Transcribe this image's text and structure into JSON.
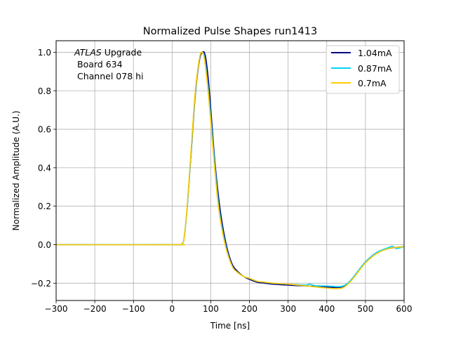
{
  "chart_data": {
    "type": "line",
    "title": "Normalized Pulse Shapes run1413",
    "xlabel": "Time [ns]",
    "ylabel": "Normalized Amplitude (A.U.)",
    "xlim": [
      -300,
      600
    ],
    "ylim": [
      -0.29,
      1.06
    ],
    "xticks": [
      -300,
      -200,
      -100,
      0,
      100,
      200,
      300,
      400,
      500,
      600
    ],
    "xtick_labels": [
      "−300",
      "−200",
      "−100",
      "0",
      "100",
      "200",
      "300",
      "400",
      "500",
      "600"
    ],
    "yticks": [
      -0.2,
      0.0,
      0.2,
      0.4,
      0.6,
      0.8,
      1.0
    ],
    "ytick_labels": [
      "−0.2",
      "0.0",
      "0.2",
      "0.4",
      "0.6",
      "0.8",
      "1.0"
    ],
    "grid": true,
    "legend_position": "top-right",
    "annotation": {
      "atlas": "ATLAS",
      "upgrade": " Upgrade",
      "board": "Board 634",
      "channel": "Channel 078 hi"
    },
    "series": [
      {
        "name": "1.04mA",
        "color": "#00007f",
        "x": [
          -300,
          0,
          25,
          32,
          40,
          50,
          60,
          70,
          78,
          86,
          94,
          102,
          112,
          125,
          140,
          155,
          170,
          185,
          200,
          220,
          240,
          260,
          300,
          350,
          400,
          430,
          445,
          460,
          480,
          500,
          530,
          560,
          575,
          600
        ],
        "y": [
          0,
          0,
          0.005,
          0.05,
          0.22,
          0.5,
          0.78,
          0.95,
          1.0,
          0.98,
          0.85,
          0.65,
          0.4,
          0.17,
          0.0,
          -0.1,
          -0.14,
          -0.165,
          -0.18,
          -0.195,
          -0.2,
          -0.205,
          -0.21,
          -0.215,
          -0.22,
          -0.222,
          -0.215,
          -0.19,
          -0.14,
          -0.09,
          -0.04,
          -0.02,
          -0.015,
          -0.01
        ]
      },
      {
        "name": "0.87mA",
        "color": "#00d4ff",
        "x": [
          -300,
          0,
          25,
          32,
          40,
          50,
          60,
          70,
          77,
          84,
          92,
          100,
          110,
          122,
          138,
          155,
          170,
          185,
          200,
          220,
          240,
          260,
          300,
          345,
          355,
          370,
          400,
          430,
          445,
          460,
          480,
          500,
          530,
          560,
          570,
          580,
          600
        ],
        "y": [
          0,
          0,
          0.005,
          0.05,
          0.22,
          0.51,
          0.79,
          0.96,
          1.0,
          0.97,
          0.84,
          0.66,
          0.42,
          0.18,
          0.0,
          -0.11,
          -0.145,
          -0.165,
          -0.175,
          -0.19,
          -0.195,
          -0.2,
          -0.205,
          -0.21,
          -0.205,
          -0.213,
          -0.215,
          -0.218,
          -0.212,
          -0.19,
          -0.14,
          -0.09,
          -0.04,
          -0.015,
          -0.008,
          -0.02,
          -0.01
        ]
      },
      {
        "name": "0.7mA",
        "color": "#ffcc00",
        "x": [
          -300,
          0,
          25,
          32,
          40,
          50,
          60,
          70,
          76,
          83,
          91,
          99,
          109,
          121,
          137,
          155,
          170,
          185,
          200,
          220,
          240,
          260,
          300,
          350,
          400,
          430,
          445,
          460,
          480,
          500,
          530,
          560,
          575,
          600
        ],
        "y": [
          0,
          0,
          0.005,
          0.05,
          0.23,
          0.52,
          0.8,
          0.96,
          1.0,
          0.97,
          0.84,
          0.66,
          0.42,
          0.18,
          0.0,
          -0.11,
          -0.145,
          -0.165,
          -0.175,
          -0.19,
          -0.195,
          -0.2,
          -0.205,
          -0.215,
          -0.225,
          -0.228,
          -0.22,
          -0.195,
          -0.145,
          -0.095,
          -0.045,
          -0.02,
          -0.015,
          -0.01
        ]
      }
    ]
  }
}
